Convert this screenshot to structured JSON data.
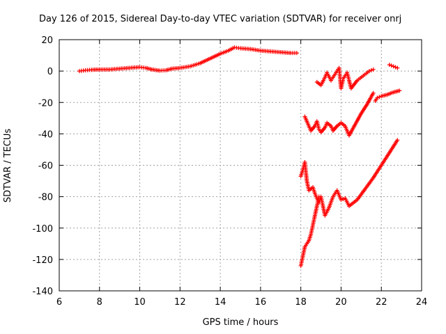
{
  "chart_data": {
    "type": "scatter",
    "title": "Day 126 of 2015, Sidereal Day-to-day VTEC variation (SDTVAR) for receiver onrj",
    "xlabel": "GPS time / hours",
    "ylabel": "SDTVAR / TECUs",
    "xlim": [
      6,
      24
    ],
    "ylim": [
      -140,
      20
    ],
    "xticks": [
      6,
      8,
      10,
      12,
      14,
      16,
      18,
      20,
      22,
      24
    ],
    "yticks": [
      -140,
      -120,
      -100,
      -80,
      -60,
      -40,
      -20,
      0,
      20
    ],
    "grid": true,
    "marker": "plus",
    "color": "#ff0000",
    "series": [
      {
        "points": [
          [
            7.0,
            0
          ],
          [
            7.3,
            0.5
          ],
          [
            7.6,
            0.8
          ],
          [
            8.0,
            1
          ],
          [
            8.5,
            1
          ],
          [
            9.0,
            1.5
          ],
          [
            9.5,
            2
          ],
          [
            10.0,
            2.5
          ],
          [
            10.3,
            2
          ],
          [
            10.6,
            1
          ],
          [
            11.0,
            0.3
          ],
          [
            11.3,
            0.5
          ],
          [
            11.6,
            1.5
          ],
          [
            12.0,
            2
          ],
          [
            12.5,
            3
          ],
          [
            13.0,
            5
          ],
          [
            13.5,
            8
          ],
          [
            14.0,
            11
          ],
          [
            14.4,
            13
          ],
          [
            14.7,
            15
          ],
          [
            15.0,
            14.5
          ],
          [
            15.5,
            14
          ],
          [
            16.0,
            13
          ],
          [
            16.5,
            12.5
          ],
          [
            17.0,
            12
          ],
          [
            17.5,
            11.5
          ],
          [
            17.8,
            11.5
          ]
        ]
      },
      {
        "points": [
          [
            18.2,
            -29
          ],
          [
            18.4,
            -35
          ],
          [
            18.5,
            -38
          ],
          [
            18.7,
            -35
          ],
          [
            18.8,
            -32
          ],
          [
            18.9,
            -37
          ],
          [
            19.0,
            -39
          ],
          [
            19.2,
            -36
          ],
          [
            19.3,
            -33
          ],
          [
            19.5,
            -35
          ],
          [
            19.6,
            -38
          ],
          [
            19.8,
            -35
          ],
          [
            20.0,
            -33
          ],
          [
            20.2,
            -35
          ],
          [
            20.4,
            -41
          ],
          [
            20.7,
            -34
          ],
          [
            21.0,
            -27
          ],
          [
            21.3,
            -21
          ],
          [
            21.6,
            -14
          ]
        ]
      },
      {
        "points": [
          [
            18.0,
            -67
          ],
          [
            18.1,
            -63
          ],
          [
            18.2,
            -58
          ],
          [
            18.3,
            -70
          ],
          [
            18.4,
            -76
          ],
          [
            18.6,
            -74
          ],
          [
            18.7,
            -78
          ],
          [
            18.9,
            -84
          ],
          [
            19.0,
            -80
          ],
          [
            19.2,
            -92
          ],
          [
            19.4,
            -87
          ],
          [
            19.6,
            -80
          ],
          [
            19.8,
            -76
          ],
          [
            20.0,
            -82
          ],
          [
            20.2,
            -81
          ],
          [
            20.4,
            -86
          ],
          [
            20.8,
            -82
          ],
          [
            21.2,
            -75
          ],
          [
            21.6,
            -68
          ],
          [
            22.0,
            -60
          ],
          [
            22.4,
            -52
          ],
          [
            22.8,
            -44
          ]
        ]
      },
      {
        "points": [
          [
            18.0,
            -124
          ],
          [
            18.1,
            -118
          ],
          [
            18.2,
            -112
          ],
          [
            18.3,
            -110
          ],
          [
            18.4,
            -108
          ],
          [
            18.5,
            -104
          ],
          [
            18.6,
            -98
          ],
          [
            18.7,
            -92
          ],
          [
            18.8,
            -86
          ],
          [
            18.9,
            -80
          ]
        ]
      },
      {
        "points": [
          [
            18.8,
            -7
          ],
          [
            19.0,
            -9
          ],
          [
            19.2,
            -4
          ],
          [
            19.3,
            -1
          ],
          [
            19.5,
            -6
          ],
          [
            19.7,
            -2
          ],
          [
            19.9,
            2
          ],
          [
            20.0,
            -11
          ],
          [
            20.1,
            -5
          ],
          [
            20.3,
            -1
          ],
          [
            20.5,
            -11
          ],
          [
            20.8,
            -6
          ],
          [
            21.1,
            -3
          ],
          [
            21.4,
            0
          ],
          [
            21.6,
            1
          ]
        ]
      },
      {
        "points": [
          [
            21.7,
            -19
          ],
          [
            21.8,
            -17
          ],
          [
            22.0,
            -16
          ],
          [
            22.3,
            -15
          ],
          [
            22.6,
            -13.5
          ],
          [
            22.9,
            -12.5
          ]
        ]
      },
      {
        "points": [
          [
            22.4,
            4
          ],
          [
            22.6,
            3
          ],
          [
            22.8,
            2
          ]
        ]
      }
    ]
  }
}
